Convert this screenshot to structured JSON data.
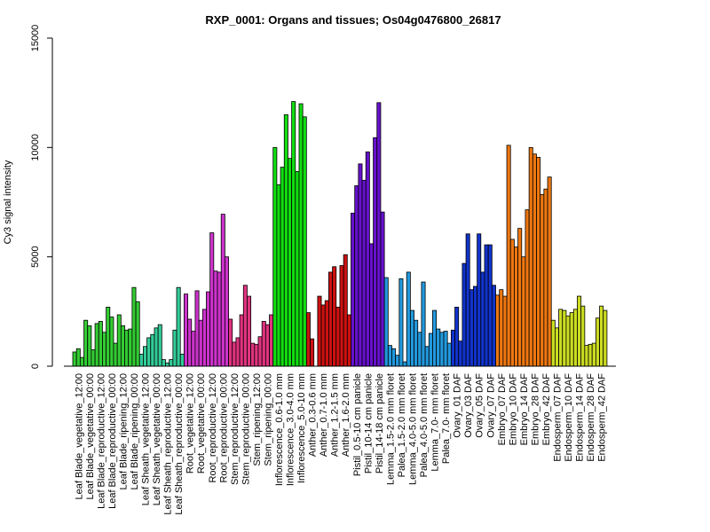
{
  "chart_data": {
    "type": "bar",
    "title": "RXP_0001: Organs and tissues; Os04g0476800_26817",
    "xlabel": "",
    "ylabel": "Cy3 signal intensity",
    "ylim": [
      0,
      15000
    ],
    "yticks": [
      0,
      5000,
      10000,
      15000
    ],
    "grid": false,
    "groups": [
      {
        "label": "Leaf Blade_vegetative_12:00",
        "color": "#33cc33",
        "values": [
          650,
          800,
          400
        ]
      },
      {
        "label": "Leaf Blade_vegetative_00:00",
        "color": "#33cc33",
        "values": [
          2100,
          1850,
          750
        ]
      },
      {
        "label": "Leaf Blade_reproductive_12:00",
        "color": "#33cc33",
        "values": [
          1950,
          2050,
          1550
        ]
      },
      {
        "label": "Leaf Blade_reproductive_00:00",
        "color": "#33cc33",
        "values": [
          2700,
          2250,
          1050
        ]
      },
      {
        "label": "Leaf Blade_ripening_12:00",
        "color": "#33cc33",
        "values": [
          2350,
          1850,
          1650
        ]
      },
      {
        "label": "Leaf Blade_ripening_00:00",
        "color": "#33cc33",
        "values": [
          1700,
          3600,
          2950
        ]
      },
      {
        "label": "Leaf Sheath_vegetative_12:00",
        "color": "#33cc99",
        "values": [
          550,
          900,
          1300
        ]
      },
      {
        "label": "Leaf Sheath_vegetative_00:00",
        "color": "#33cc99",
        "values": [
          1450,
          1750,
          1900
        ]
      },
      {
        "label": "Leaf Sheath_reproductive_12:00",
        "color": "#33cc99",
        "values": [
          300,
          150,
          300
        ]
      },
      {
        "label": "Leaf Sheath_reproductive_00:00",
        "color": "#33cc99",
        "values": [
          1650,
          3600,
          550
        ]
      },
      {
        "label": "Root_vegetative_12:00",
        "color": "#cc33cc",
        "values": [
          3300,
          2150,
          1600
        ]
      },
      {
        "label": "Root_vegetative_00:00",
        "color": "#cc33cc",
        "values": [
          3450,
          2100,
          2600
        ]
      },
      {
        "label": "Root_reproductive_12:00",
        "color": "#cc33cc",
        "values": [
          3400,
          6100,
          4350
        ]
      },
      {
        "label": "Root_reproductive_00:00",
        "color": "#cc33cc",
        "values": [
          4300,
          6950,
          5000
        ]
      },
      {
        "label": "Stem_reproductive_12:00",
        "color": "#e0337f",
        "values": [
          2150,
          1100,
          1300
        ]
      },
      {
        "label": "Stem_reproductive_00:00",
        "color": "#e0337f",
        "values": [
          2350,
          3700,
          3200
        ]
      },
      {
        "label": "Stem_ripening_12:00",
        "color": "#e0337f",
        "values": [
          1050,
          1000,
          1350
        ]
      },
      {
        "label": "Stem_ripening_00:00",
        "color": "#e0337f",
        "values": [
          2050,
          1900,
          2350
        ]
      },
      {
        "label": "Inflorescence_0.6-1.0 mm",
        "color": "#11dd11",
        "values": [
          10000,
          8300,
          9100
        ]
      },
      {
        "label": "Inflorescence_3.0-4.0 mm",
        "color": "#11dd11",
        "values": [
          11500,
          9500,
          12100
        ]
      },
      {
        "label": "Inflorescence_5.0-10 mm",
        "color": "#11dd11",
        "values": [
          8900,
          12000,
          11400
        ]
      },
      {
        "label": "Anther_0.3-0.6 mm",
        "color": "#cc1111",
        "values": [
          2450,
          1250,
          0
        ]
      },
      {
        "label": "Anther_0.7-1.0 mm",
        "color": "#cc1111",
        "values": [
          3200,
          2800,
          3000
        ]
      },
      {
        "label": "Anther_1.2-1.5 mm",
        "color": "#cc1111",
        "values": [
          4300,
          4550,
          2700
        ]
      },
      {
        "label": "Anther_1.6-2.0 mm",
        "color": "#cc1111",
        "values": [
          4600,
          5100,
          2350
        ]
      },
      {
        "label": "Pistil_0.5-10 cm panicle",
        "color": "#6611cc",
        "values": [
          7000,
          8250,
          9250
        ]
      },
      {
        "label": "Pistil_10-14 cm panicle",
        "color": "#6611cc",
        "values": [
          8500,
          9800,
          5600
        ]
      },
      {
        "label": "Pistil_14-18 cm panicle",
        "color": "#6611cc",
        "values": [
          10450,
          12050,
          7050
        ]
      },
      {
        "label": "Lemma_1.5-2.0 mm floret",
        "color": "#2299dd",
        "values": [
          4050,
          950,
          800
        ]
      },
      {
        "label": "Palea_1.5-2.0 mm floret",
        "color": "#2299dd",
        "values": [
          500,
          4000,
          200
        ]
      },
      {
        "label": "Lemma_4.0-5.0 mm floret",
        "color": "#2299dd",
        "values": [
          4300,
          2550,
          2100
        ]
      },
      {
        "label": "Palea_4.0-5.0 mm floret",
        "color": "#2299dd",
        "values": [
          1550,
          3850,
          900
        ]
      },
      {
        "label": "Lemma_7.0- mm floret",
        "color": "#2299dd",
        "values": [
          1500,
          2550,
          1700
        ]
      },
      {
        "label": "Palea_7.0- mm floret",
        "color": "#2299dd",
        "values": [
          1550,
          1600,
          1050
        ]
      },
      {
        "label": "Ovary_01 DAF",
        "color": "#1133cc",
        "values": [
          1650,
          2700,
          1150
        ]
      },
      {
        "label": "Ovary_03 DAF",
        "color": "#1133cc",
        "values": [
          4700,
          6050,
          3500
        ]
      },
      {
        "label": "Ovary_05 DAF",
        "color": "#1133cc",
        "values": [
          3650,
          6050,
          4300
        ]
      },
      {
        "label": "Ovary_07 DAF",
        "color": "#1133cc",
        "values": [
          5550,
          5550,
          3700
        ]
      },
      {
        "label": "Embryo_07 DAF",
        "color": "#ee7711",
        "values": [
          3250,
          3500,
          3200
        ]
      },
      {
        "label": "Embryo_10 DAF",
        "color": "#ee7711",
        "values": [
          10100,
          5800,
          5450
        ]
      },
      {
        "label": "Embryo_14 DAF",
        "color": "#ee7711",
        "values": [
          6300,
          5000,
          7150
        ]
      },
      {
        "label": "Embryo_28 DAF",
        "color": "#ee7711",
        "values": [
          10000,
          9700,
          9550
        ]
      },
      {
        "label": "Embryo_42 DAF",
        "color": "#ee7711",
        "values": [
          7850,
          8100,
          8650
        ]
      },
      {
        "label": "Endosperm_07 DAF",
        "color": "#ccdd22",
        "values": [
          2100,
          1750,
          2600
        ]
      },
      {
        "label": "Endosperm_10 DAF",
        "color": "#ccdd22",
        "values": [
          2550,
          2300,
          2450
        ]
      },
      {
        "label": "Endosperm_14 DAF",
        "color": "#ccdd22",
        "values": [
          2600,
          3200,
          2750
        ]
      },
      {
        "label": "Endosperm_28 DAF",
        "color": "#ccdd22",
        "values": [
          950,
          1000,
          1050
        ]
      },
      {
        "label": "Endosperm_42 DAF",
        "color": "#ccdd22",
        "values": [
          2200,
          2750,
          2550
        ]
      }
    ]
  }
}
